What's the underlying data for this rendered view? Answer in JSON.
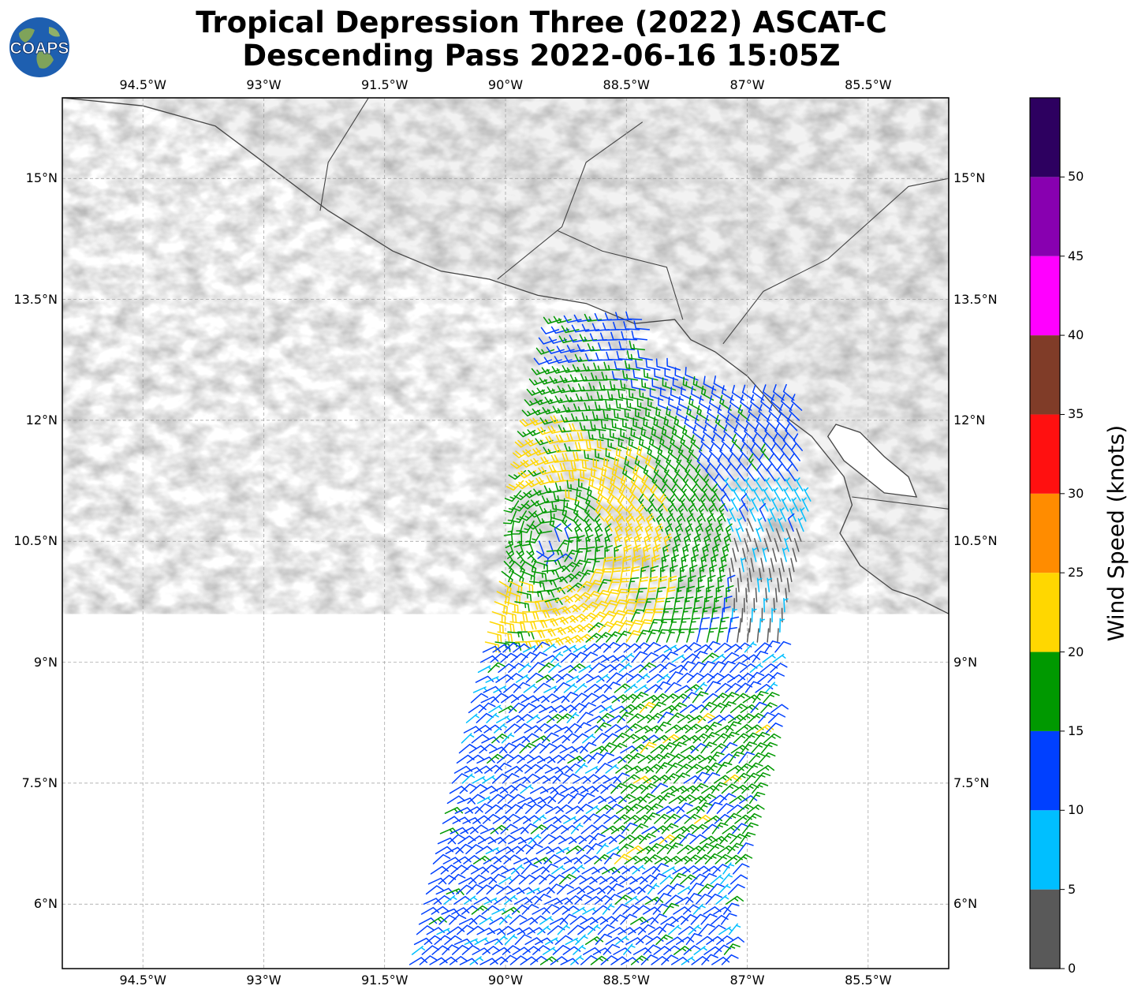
{
  "title": {
    "line1": "Tropical Depression Three (2022) ASCAT-C",
    "line2": "Descending Pass 2022-06-16 15:05Z"
  },
  "logo": {
    "text": "COAPS",
    "icon": "globe-icon"
  },
  "map": {
    "lon_range": [
      -95.5,
      -84.5
    ],
    "lat_range": [
      5.2,
      16.0
    ],
    "x_ticks": [
      {
        "lon": -94.5,
        "label": "94.5°W"
      },
      {
        "lon": -93.0,
        "label": "93°W"
      },
      {
        "lon": -91.5,
        "label": "91.5°W"
      },
      {
        "lon": -90.0,
        "label": "90°W"
      },
      {
        "lon": -88.5,
        "label": "88.5°W"
      },
      {
        "lon": -87.0,
        "label": "87°W"
      },
      {
        "lon": -85.5,
        "label": "85.5°W"
      }
    ],
    "y_ticks": [
      {
        "lat": 15.0,
        "label": "15°N"
      },
      {
        "lat": 13.5,
        "label": "13.5°N"
      },
      {
        "lat": 12.0,
        "label": "12°N"
      },
      {
        "lat": 10.5,
        "label": "10.5°N"
      },
      {
        "lat": 9.0,
        "label": "9°N"
      },
      {
        "lat": 7.5,
        "label": "7.5°N"
      },
      {
        "lat": 6.0,
        "label": "6°N"
      }
    ],
    "gridlines": true,
    "storm_center": {
      "lon": -89.45,
      "lat": 10.5
    },
    "swath": {
      "west_edge": [
        [
          -89.3,
          13.3
        ],
        [
          -91.2,
          5.2
        ]
      ],
      "east_edge": [
        [
          -85.8,
          13.2
        ],
        [
          -87.3,
          5.2
        ]
      ]
    },
    "land_color": "#f2f2f2",
    "terrain_color": "#555555"
  },
  "colorbar": {
    "label": "Wind Speed (knots)",
    "bins": [
      {
        "min": 0,
        "max": 5,
        "color": "#595959"
      },
      {
        "min": 5,
        "max": 10,
        "color": "#00bfff"
      },
      {
        "min": 10,
        "max": 15,
        "color": "#0040ff"
      },
      {
        "min": 15,
        "max": 20,
        "color": "#009900"
      },
      {
        "min": 20,
        "max": 25,
        "color": "#ffd700"
      },
      {
        "min": 25,
        "max": 30,
        "color": "#ff8c00"
      },
      {
        "min": 30,
        "max": 35,
        "color": "#ff1010"
      },
      {
        "min": 35,
        "max": 40,
        "color": "#803c28"
      },
      {
        "min": 40,
        "max": 45,
        "color": "#ff00ff"
      },
      {
        "min": 45,
        "max": 50,
        "color": "#8800b0"
      },
      {
        "min": 50,
        "max": 55,
        "color": "#2d0060"
      }
    ],
    "ticks": [
      "0",
      "5",
      "10",
      "15",
      "20",
      "25",
      "30",
      "35",
      "40",
      "45",
      "50"
    ]
  }
}
